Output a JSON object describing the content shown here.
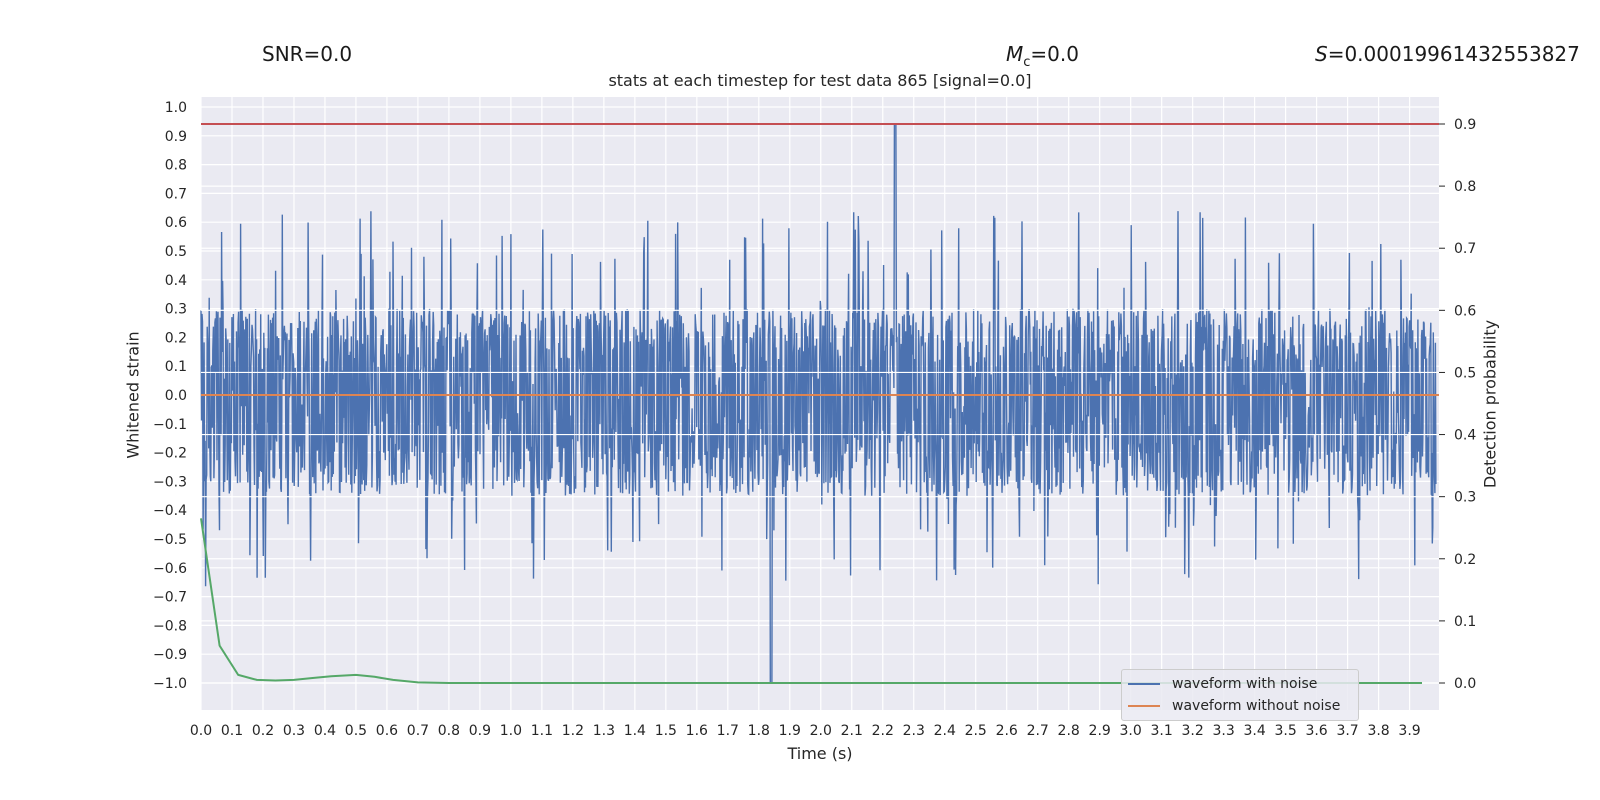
{
  "header": {
    "snr": "SNR=0.0",
    "mc_symbol": "M",
    "mc_sub": "c",
    "mc_value": "=0.0",
    "s_symbol": "S",
    "s_value": "=0.00019961432553827"
  },
  "chart_data": {
    "type": "line",
    "title": "stats at each timestep for test data 865 [signal=0.0]",
    "xlabel": "Time (s)",
    "ylabel": "Whitened strain",
    "ylabel_right": "Detection probability",
    "xlim": [
      0.0,
      4.0
    ],
    "ylim": [
      -1.1,
      1.1
    ],
    "ylim_right": [
      -0.04,
      0.93
    ],
    "x_ticks": [
      "0.0",
      "0.1",
      "0.2",
      "0.3",
      "0.4",
      "0.5",
      "0.6",
      "0.7",
      "0.8",
      "0.9",
      "1.0",
      "1.1",
      "1.2",
      "1.3",
      "1.4",
      "1.5",
      "1.6",
      "1.7",
      "1.8",
      "1.9",
      "2.0",
      "2.1",
      "2.2",
      "2.3",
      "2.4",
      "2.5",
      "2.6",
      "2.7",
      "2.8",
      "2.9",
      "3.0",
      "3.1",
      "3.2",
      "3.3",
      "3.4",
      "3.5",
      "3.6",
      "3.7",
      "3.8",
      "3.9"
    ],
    "y_ticks_left": [
      "1.0",
      "0.9",
      "0.8",
      "0.7",
      "0.6",
      "0.5",
      "0.4",
      "0.3",
      "0.2",
      "0.1",
      "0.0",
      "−0.1",
      "−0.2",
      "−0.3",
      "−0.4",
      "−0.5",
      "−0.6",
      "−0.7",
      "−0.8",
      "−0.9",
      "−1.0"
    ],
    "y_ticks_right": [
      "0.9",
      "0.8",
      "0.7",
      "0.6",
      "0.5",
      "0.4",
      "0.3",
      "0.2",
      "0.1",
      "0.0"
    ],
    "grid": true,
    "background": "#eaeaf2",
    "legend_position": "lower-right",
    "series": [
      {
        "name": "waveform with noise",
        "color": "#4c72b0",
        "axis": "left",
        "description_peaks": {
          "max": 0.94,
          "max_at": 2.24,
          "min": -1.0,
          "min_at": 1.84,
          "typical_upper": 0.3,
          "typical_lower": -0.35
        }
      },
      {
        "name": "waveform without noise",
        "color": "#dd8452",
        "axis": "left",
        "x": [
          0.0,
          4.0
        ],
        "y": [
          0.0,
          0.0
        ]
      },
      {
        "color": "#55a868",
        "axis": "right",
        "x": [
          0.0,
          0.06,
          0.12,
          0.18,
          0.24,
          0.3,
          0.36,
          0.42,
          0.5,
          0.56,
          0.62,
          0.7,
          0.8,
          1.0,
          2.0,
          3.0,
          3.94
        ],
        "y": [
          0.265,
          0.06,
          0.013,
          0.005,
          0.004,
          0.005,
          0.008,
          0.011,
          0.013,
          0.01,
          0.005,
          0.001,
          0.0,
          0.0,
          0.0,
          0.0,
          0.0
        ]
      },
      {
        "color": "#c44e52",
        "axis": "right",
        "x": [
          0.0,
          4.0
        ],
        "y": [
          0.9,
          0.9
        ]
      }
    ]
  }
}
